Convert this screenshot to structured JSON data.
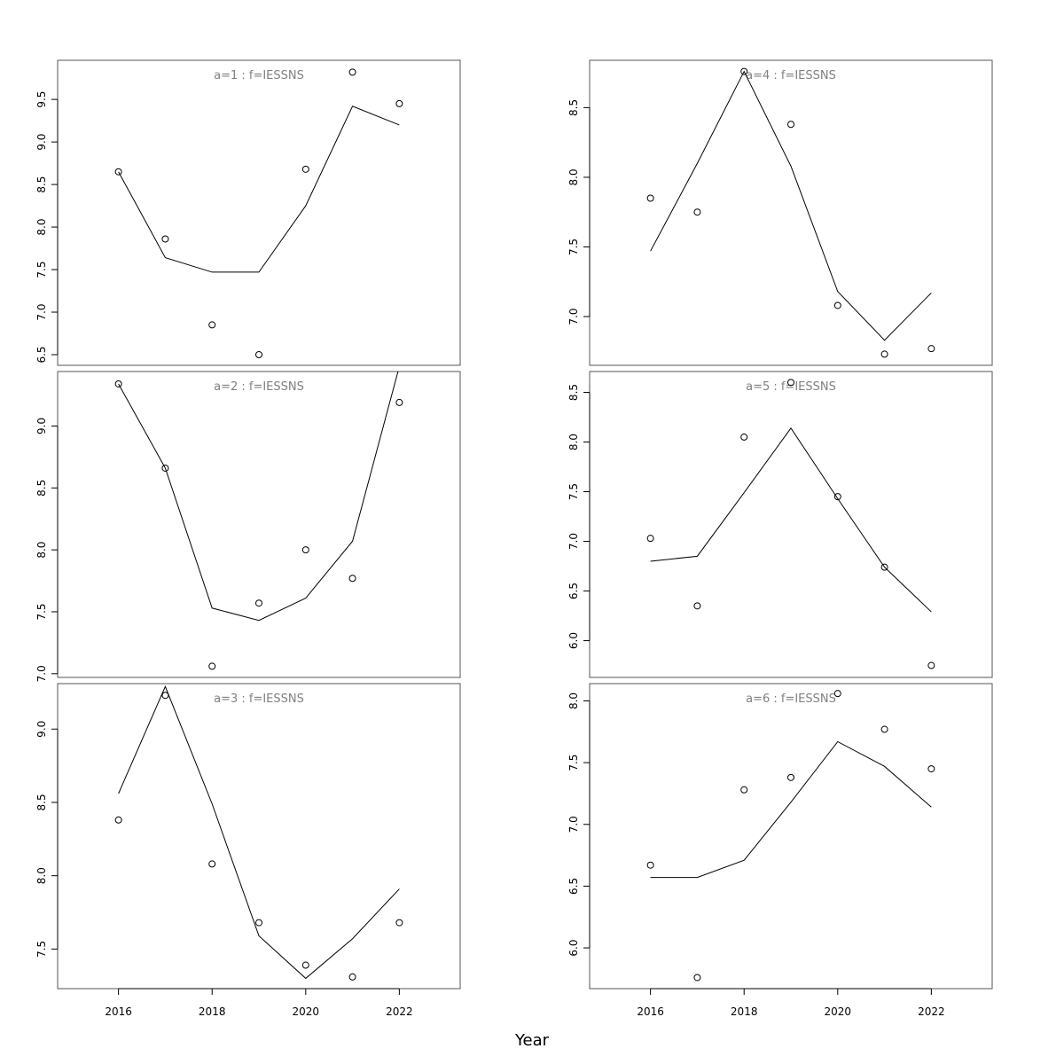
{
  "chart_data": {
    "type": "scatter",
    "xlabel": "Year",
    "x": [
      2016,
      2017,
      2018,
      2019,
      2020,
      2021,
      2022
    ],
    "xlim": [
      2014.7,
      2023.3
    ],
    "x_ticks": [
      2016,
      2018,
      2020,
      2022
    ],
    "line_color": "#000000",
    "title_color": "#808080",
    "panels": [
      {
        "title": "a=1  :  f=IESSNS",
        "ylim": [
          6.375,
          9.96
        ],
        "y_ticks": [
          "6.5",
          "7.0",
          "7.5",
          "8.0",
          "8.5",
          "9.0",
          "9.5"
        ],
        "points": [
          8.65,
          7.86,
          6.85,
          6.5,
          8.68,
          9.82,
          9.45
        ],
        "fitted": [
          8.65,
          7.64,
          7.47,
          7.47,
          8.25,
          9.42,
          9.2
        ]
      },
      {
        "title": "a=4  :  f=IESSNS",
        "ylim": [
          6.65,
          8.84
        ],
        "y_ticks": [
          "7.0",
          "7.5",
          "8.0",
          "8.5"
        ],
        "points": [
          7.85,
          7.75,
          8.76,
          8.38,
          7.08,
          6.73,
          6.77
        ],
        "fitted": [
          7.47,
          8.1,
          8.76,
          8.08,
          7.18,
          6.83,
          7.17
        ]
      },
      {
        "title": "a=2  :  f=IESSNS",
        "ylim": [
          6.97,
          9.44
        ],
        "y_ticks": [
          "7.0",
          "7.5",
          "8.0",
          "8.5",
          "9.0"
        ],
        "points": [
          9.34,
          8.66,
          7.06,
          7.57,
          8.0,
          7.77,
          9.19
        ],
        "fitted": [
          9.34,
          8.66,
          7.53,
          7.43,
          7.61,
          8.07,
          9.48
        ]
      },
      {
        "title": "a=5  :  f=IESSNS",
        "ylim": [
          5.63,
          8.71
        ],
        "y_ticks": [
          "6.0",
          "6.5",
          "7.0",
          "7.5",
          "8.0",
          "8.5"
        ],
        "points": [
          7.03,
          6.35,
          8.05,
          8.6,
          7.45,
          6.74,
          5.75
        ],
        "fitted": [
          6.8,
          6.85,
          7.49,
          8.14,
          7.43,
          6.74,
          6.29
        ]
      },
      {
        "title": "a=3  :  f=IESSNS",
        "ylim": [
          7.23,
          9.31
        ],
        "y_ticks": [
          "7.5",
          "8.0",
          "8.5",
          "9.0"
        ],
        "points": [
          8.38,
          9.23,
          8.08,
          7.68,
          7.39,
          7.31,
          7.68
        ],
        "fitted": [
          8.56,
          9.29,
          8.49,
          7.59,
          7.3,
          7.57,
          7.91
        ]
      },
      {
        "title": "a=6  :  f=IESSNS",
        "ylim": [
          5.67,
          8.14
        ],
        "y_ticks": [
          "6.0",
          "6.5",
          "7.0",
          "7.5",
          "8.0"
        ],
        "points": [
          6.67,
          5.76,
          7.28,
          7.38,
          8.06,
          7.77,
          7.45
        ],
        "fitted": [
          6.57,
          6.57,
          6.71,
          7.18,
          7.67,
          7.47,
          7.14
        ]
      }
    ]
  }
}
